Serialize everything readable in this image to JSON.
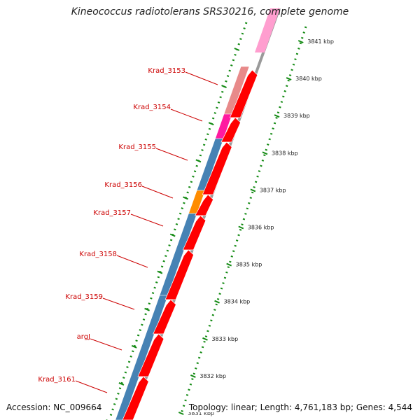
{
  "title": "Kineococcus radiotolerans SRS30216, complete genome",
  "accession": "Accession: NC_009664",
  "topology": "Topology: linear; Length: 4,761,183 bp; Genes: 4,544",
  "colors": {
    "forward_gene": "#ff0000",
    "rna_light": "#ff9ecf",
    "salmon": "#e88a8a",
    "magenta": "#ff1aa0",
    "steel_blue": "#4682b4",
    "orange": "#ff8c00",
    "label_red": "#cc0000",
    "tick_green": "#138a13"
  },
  "scale_ticks": [
    {
      "label": "3841 kbp"
    },
    {
      "label": "3840 kbp"
    },
    {
      "label": "3839 kbp"
    },
    {
      "label": "3838 kbp"
    },
    {
      "label": "3837 kbp"
    },
    {
      "label": "3836 kbp"
    },
    {
      "label": "3835 kbp"
    },
    {
      "label": "3834 kbp"
    },
    {
      "label": "3833 kbp"
    },
    {
      "label": "3832 kbp"
    },
    {
      "label": "3831 kbp"
    }
  ],
  "gene_labels": [
    {
      "name": "Krad_3153"
    },
    {
      "name": "Krad_3154"
    },
    {
      "name": "Krad_3155"
    },
    {
      "name": "Krad_3156"
    },
    {
      "name": "Krad_3157"
    },
    {
      "name": "Krad_3158"
    },
    {
      "name": "Krad_3159"
    },
    {
      "name": "argJ"
    },
    {
      "name": "Krad_3161"
    }
  ]
}
